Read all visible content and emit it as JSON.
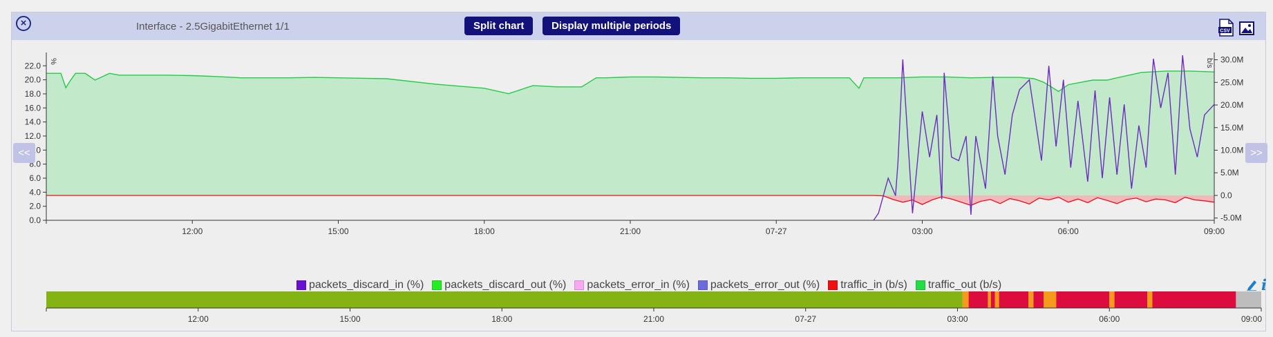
{
  "window": {
    "title": "Interface - 2.5GigabitEthernet 1/1",
    "split_chart_label": "Split chart",
    "multiple_periods_label": "Display multiple periods",
    "prev_label": "<<",
    "next_label": ">>"
  },
  "colors": {
    "header_bg": "#cdd2ec",
    "button_bg": "#12127a",
    "traffic_out_fill": "#c3e9cb",
    "traffic_out_line": "#22cc44",
    "traffic_in_line": "#e8101a",
    "traffic_in_fill": "#f2b8bc",
    "discard_in_line": "#6a2cc0",
    "status_ok": "#84b414",
    "status_warn": "#f59a1a",
    "status_crit": "#dc0c3c",
    "status_nodata": "#bdbdbd"
  },
  "legend": [
    {
      "name": "packets_discard_in (%)",
      "color": "#6a10d0"
    },
    {
      "name": "packets_discard_out (%)",
      "color": "#22ee22"
    },
    {
      "name": "packets_error_in (%)",
      "color": "#f7a8f0"
    },
    {
      "name": "packets_error_out (%)",
      "color": "#6a6ad8"
    },
    {
      "name": "traffic_in (b/s)",
      "color": "#ee1111"
    },
    {
      "name": "traffic_out (b/s)",
      "color": "#22dd44"
    }
  ],
  "chart_data": {
    "type": "area",
    "x_ticks": [
      "12:00",
      "15:00",
      "18:00",
      "21:00",
      "07-27",
      "03:00",
      "06:00",
      "09:00"
    ],
    "left_axis": {
      "label": "%",
      "ticks": [
        "22.0",
        "20.0",
        "18.0",
        "16.0",
        "14.0",
        "12.0",
        "10.0",
        "8.0",
        "6.0",
        "4.0",
        "2.0",
        "0.0"
      ],
      "ylim": [
        0,
        23.5
      ]
    },
    "right_axis": {
      "label": "b/s",
      "ticks": [
        "30.0M",
        "25.0M",
        "20.0M",
        "15.0M",
        "10.0M",
        "5.0M",
        "0.0",
        "-5.0M"
      ],
      "ylim": [
        -5.5,
        31
      ]
    },
    "x_range_hours": [
      0,
      24
    ],
    "series": [
      {
        "name": "traffic_out (b/s)",
        "axis": "right",
        "x_hours": [
          0,
          0.3,
          0.4,
          0.5,
          0.6,
          0.8,
          1.0,
          1.3,
          1.5,
          2.0,
          2.5,
          3.0,
          3.5,
          4.0,
          4.5,
          5.0,
          5.5,
          6.0,
          7.0,
          8.0,
          9.0,
          9.5,
          10.0,
          10.5,
          11.0,
          11.3,
          11.5,
          12.0,
          12.5,
          13.0,
          13.5,
          14.0,
          14.5,
          15.0,
          15.5,
          16.0,
          16.5,
          16.7,
          16.8,
          17.0,
          17.5,
          18.0,
          18.5,
          19.0,
          19.5,
          20.0,
          20.3,
          20.5,
          20.8,
          21.0,
          21.5,
          21.8,
          22.0,
          22.5,
          23.0,
          23.5,
          24.0
        ],
        "values_m": [
          27.0,
          27.0,
          23.8,
          25.5,
          27.0,
          27.0,
          25.5,
          27.0,
          26.6,
          26.6,
          26.6,
          26.5,
          26.3,
          26.0,
          26.0,
          26.0,
          26.1,
          26.0,
          25.8,
          24.6,
          23.7,
          22.5,
          24.3,
          24.0,
          24.0,
          26.0,
          26.0,
          26.2,
          26.2,
          26.1,
          26.0,
          26.0,
          25.9,
          25.9,
          26.0,
          26.0,
          26.0,
          23.7,
          26.0,
          26.0,
          26.0,
          26.2,
          26.2,
          26.0,
          26.1,
          26.1,
          25.8,
          25.0,
          23.0,
          24.5,
          25.5,
          25.5,
          26.0,
          27.2,
          27.5,
          27.5,
          27.3
        ]
      },
      {
        "name": "traffic_in (b/s)",
        "axis": "right",
        "x_hours": [
          0,
          17.0,
          17.2,
          17.4,
          17.6,
          17.8,
          18.0,
          18.2,
          18.4,
          18.6,
          18.8,
          19.0,
          19.2,
          19.4,
          19.6,
          19.8,
          20.0,
          20.2,
          20.4,
          20.6,
          20.8,
          21.0,
          21.2,
          21.4,
          21.6,
          21.8,
          22.0,
          22.2,
          22.4,
          22.6,
          22.8,
          23.0,
          23.2,
          23.4,
          23.6,
          23.8,
          24.0
        ],
        "values_m": [
          0,
          0,
          -0.1,
          -0.9,
          -1.5,
          -1.0,
          -2.0,
          -1.0,
          -0.3,
          -0.8,
          -1.5,
          -2.2,
          -1.3,
          -0.9,
          -1.8,
          -0.7,
          -1.2,
          -1.9,
          -0.6,
          -1.0,
          -0.4,
          -1.5,
          -0.8,
          -1.6,
          -0.5,
          -1.1,
          -1.8,
          -0.9,
          -0.6,
          -1.4,
          -0.8,
          -1.0,
          -1.6,
          -0.4,
          -1.0,
          -1.2,
          -1.5
        ]
      },
      {
        "name": "packets_discard_in (%)",
        "axis": "left",
        "x_hours": [
          17.0,
          17.1,
          17.3,
          17.45,
          17.5,
          17.6,
          17.8,
          18.0,
          18.15,
          18.3,
          18.4,
          18.45,
          18.6,
          18.75,
          18.9,
          19.0,
          19.1,
          19.3,
          19.45,
          19.55,
          19.7,
          19.85,
          20.0,
          20.2,
          20.45,
          20.6,
          20.75,
          20.9,
          21.05,
          21.2,
          21.4,
          21.55,
          21.7,
          21.85,
          22.0,
          22.15,
          22.3,
          22.45,
          22.6,
          22.75,
          22.9,
          23.05,
          23.2,
          23.35,
          23.5,
          23.65,
          23.8,
          24.0
        ],
        "values": [
          0.0,
          1.0,
          6.0,
          3.5,
          8.2,
          22.9,
          1.0,
          15.5,
          9.0,
          15.0,
          3.0,
          21.0,
          9.0,
          8.5,
          12.0,
          0.8,
          12.0,
          4.5,
          20.5,
          12.0,
          6.5,
          15.0,
          18.6,
          20.0,
          8.5,
          22.0,
          10.5,
          20.0,
          7.5,
          17.0,
          5.5,
          18.5,
          6.0,
          17.5,
          6.5,
          16.5,
          4.5,
          13.5,
          7.5,
          23.0,
          16.0,
          21.0,
          6.5,
          23.5,
          13.0,
          9.0,
          15.0,
          16.5
        ]
      }
    ]
  },
  "timeline": {
    "x_ticks": [
      "12:00",
      "15:00",
      "18:00",
      "21:00",
      "07-27",
      "03:00",
      "06:00",
      "09:00"
    ],
    "segments": [
      {
        "from_h": 0,
        "to_h": 18.1,
        "status": "ok"
      },
      {
        "from_h": 18.1,
        "to_h": 18.22,
        "status": "warn"
      },
      {
        "from_h": 18.22,
        "to_h": 18.6,
        "status": "crit"
      },
      {
        "from_h": 18.6,
        "to_h": 18.66,
        "status": "warn"
      },
      {
        "from_h": 18.66,
        "to_h": 18.74,
        "status": "crit"
      },
      {
        "from_h": 18.74,
        "to_h": 18.82,
        "status": "warn"
      },
      {
        "from_h": 18.82,
        "to_h": 19.4,
        "status": "crit"
      },
      {
        "from_h": 19.4,
        "to_h": 19.5,
        "status": "warn"
      },
      {
        "from_h": 19.5,
        "to_h": 19.7,
        "status": "crit"
      },
      {
        "from_h": 19.7,
        "to_h": 19.95,
        "status": "warn"
      },
      {
        "from_h": 19.95,
        "to_h": 21.0,
        "status": "crit"
      },
      {
        "from_h": 21.0,
        "to_h": 21.1,
        "status": "warn"
      },
      {
        "from_h": 21.1,
        "to_h": 21.75,
        "status": "crit"
      },
      {
        "from_h": 21.75,
        "to_h": 21.85,
        "status": "warn"
      },
      {
        "from_h": 21.85,
        "to_h": 23.5,
        "status": "crit"
      },
      {
        "from_h": 23.5,
        "to_h": 24.0,
        "status": "nodata"
      }
    ]
  },
  "icons": [
    "close-icon",
    "csv-icon",
    "image-icon",
    "pencil-icon",
    "info-icon"
  ]
}
